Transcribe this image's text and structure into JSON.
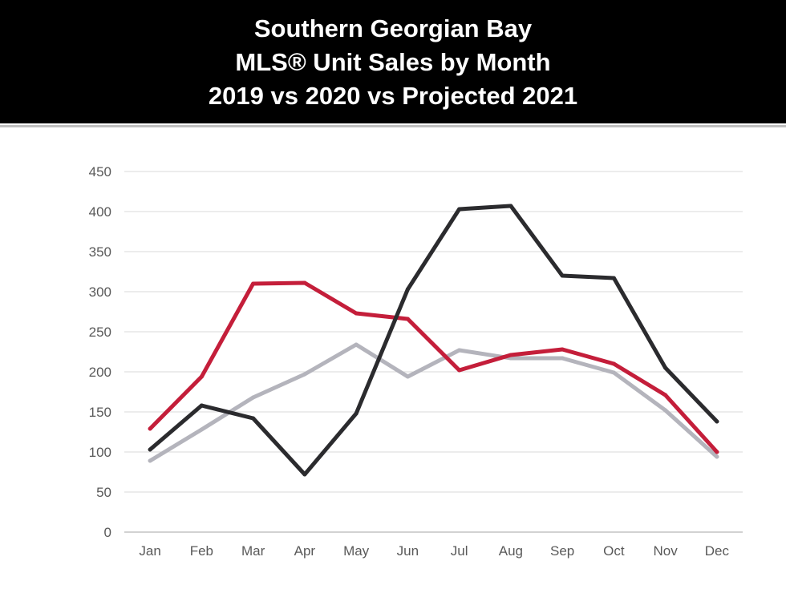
{
  "header": {
    "title_lines": [
      "Southern Georgian Bay",
      "MLS® Unit Sales by Month",
      "2019 vs 2020 vs Projected 2021"
    ],
    "background_color": "#000000",
    "text_color": "#ffffff"
  },
  "chart_data": {
    "type": "line",
    "title": "Southern Georgian Bay MLS® Unit Sales by Month 2019 vs 2020 vs Projected 2021",
    "xlabel": "",
    "ylabel": "",
    "categories": [
      "Jan",
      "Feb",
      "Mar",
      "Apr",
      "May",
      "Jun",
      "Jul",
      "Aug",
      "Sep",
      "Oct",
      "Nov",
      "Dec"
    ],
    "ylim": [
      0,
      450
    ],
    "yticks": [
      0,
      50,
      100,
      150,
      200,
      250,
      300,
      350,
      400,
      450
    ],
    "grid": true,
    "legend": "none",
    "series": [
      {
        "color": "#b4b4bc",
        "values": [
          89,
          128,
          168,
          197,
          234,
          194,
          227,
          217,
          217,
          199,
          152,
          94
        ]
      },
      {
        "color": "#c41e3a",
        "values": [
          129,
          194,
          310,
          311,
          273,
          266,
          202,
          221,
          228,
          210,
          171,
          100
        ]
      },
      {
        "color": "#2b2b2e",
        "values": [
          103,
          158,
          142,
          72,
          148,
          303,
          403,
          407,
          320,
          317,
          205,
          138
        ]
      }
    ]
  }
}
